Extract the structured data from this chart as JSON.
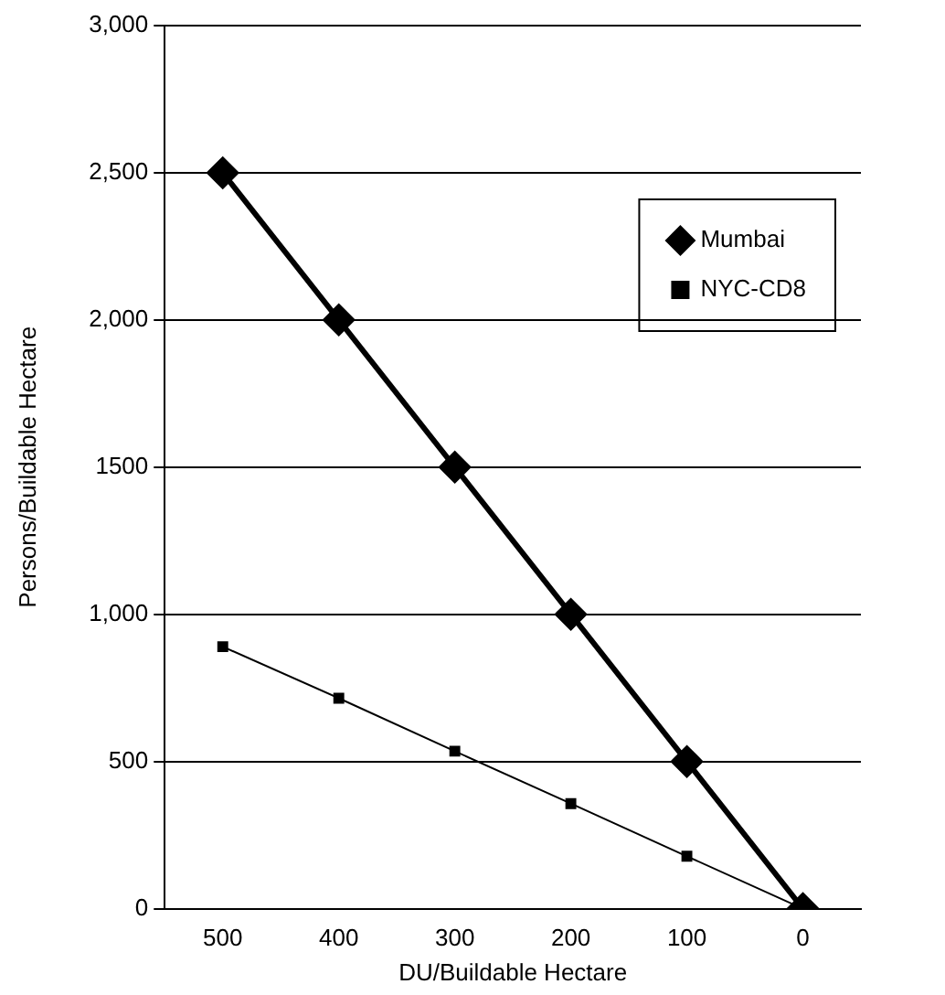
{
  "chart_data": {
    "type": "line",
    "xlabel": "DU/Buildable Hectare",
    "ylabel": "Persons/Buildable Hectare",
    "categories": [
      "500",
      "400",
      "300",
      "200",
      "100",
      "0"
    ],
    "series": [
      {
        "name": "Mumbai",
        "color": "#000000",
        "marker": "diamond",
        "values": [
          2500,
          2000,
          1500,
          1000,
          500,
          0
        ]
      },
      {
        "name": "NYC-CD8",
        "color": "#000000",
        "marker": "square",
        "values": [
          890,
          715,
          535,
          357,
          178,
          0
        ]
      }
    ],
    "ylim": [
      0,
      3000
    ],
    "yticks": [
      0,
      500,
      {
        "value": 1000,
        "label": "1,000"
      },
      1500,
      {
        "value": 2000,
        "label": "2,000"
      },
      {
        "value": 2500,
        "label": "2,500"
      },
      {
        "value": 3000,
        "label": "3,000"
      }
    ],
    "grid": "y",
    "legend": "top right"
  }
}
